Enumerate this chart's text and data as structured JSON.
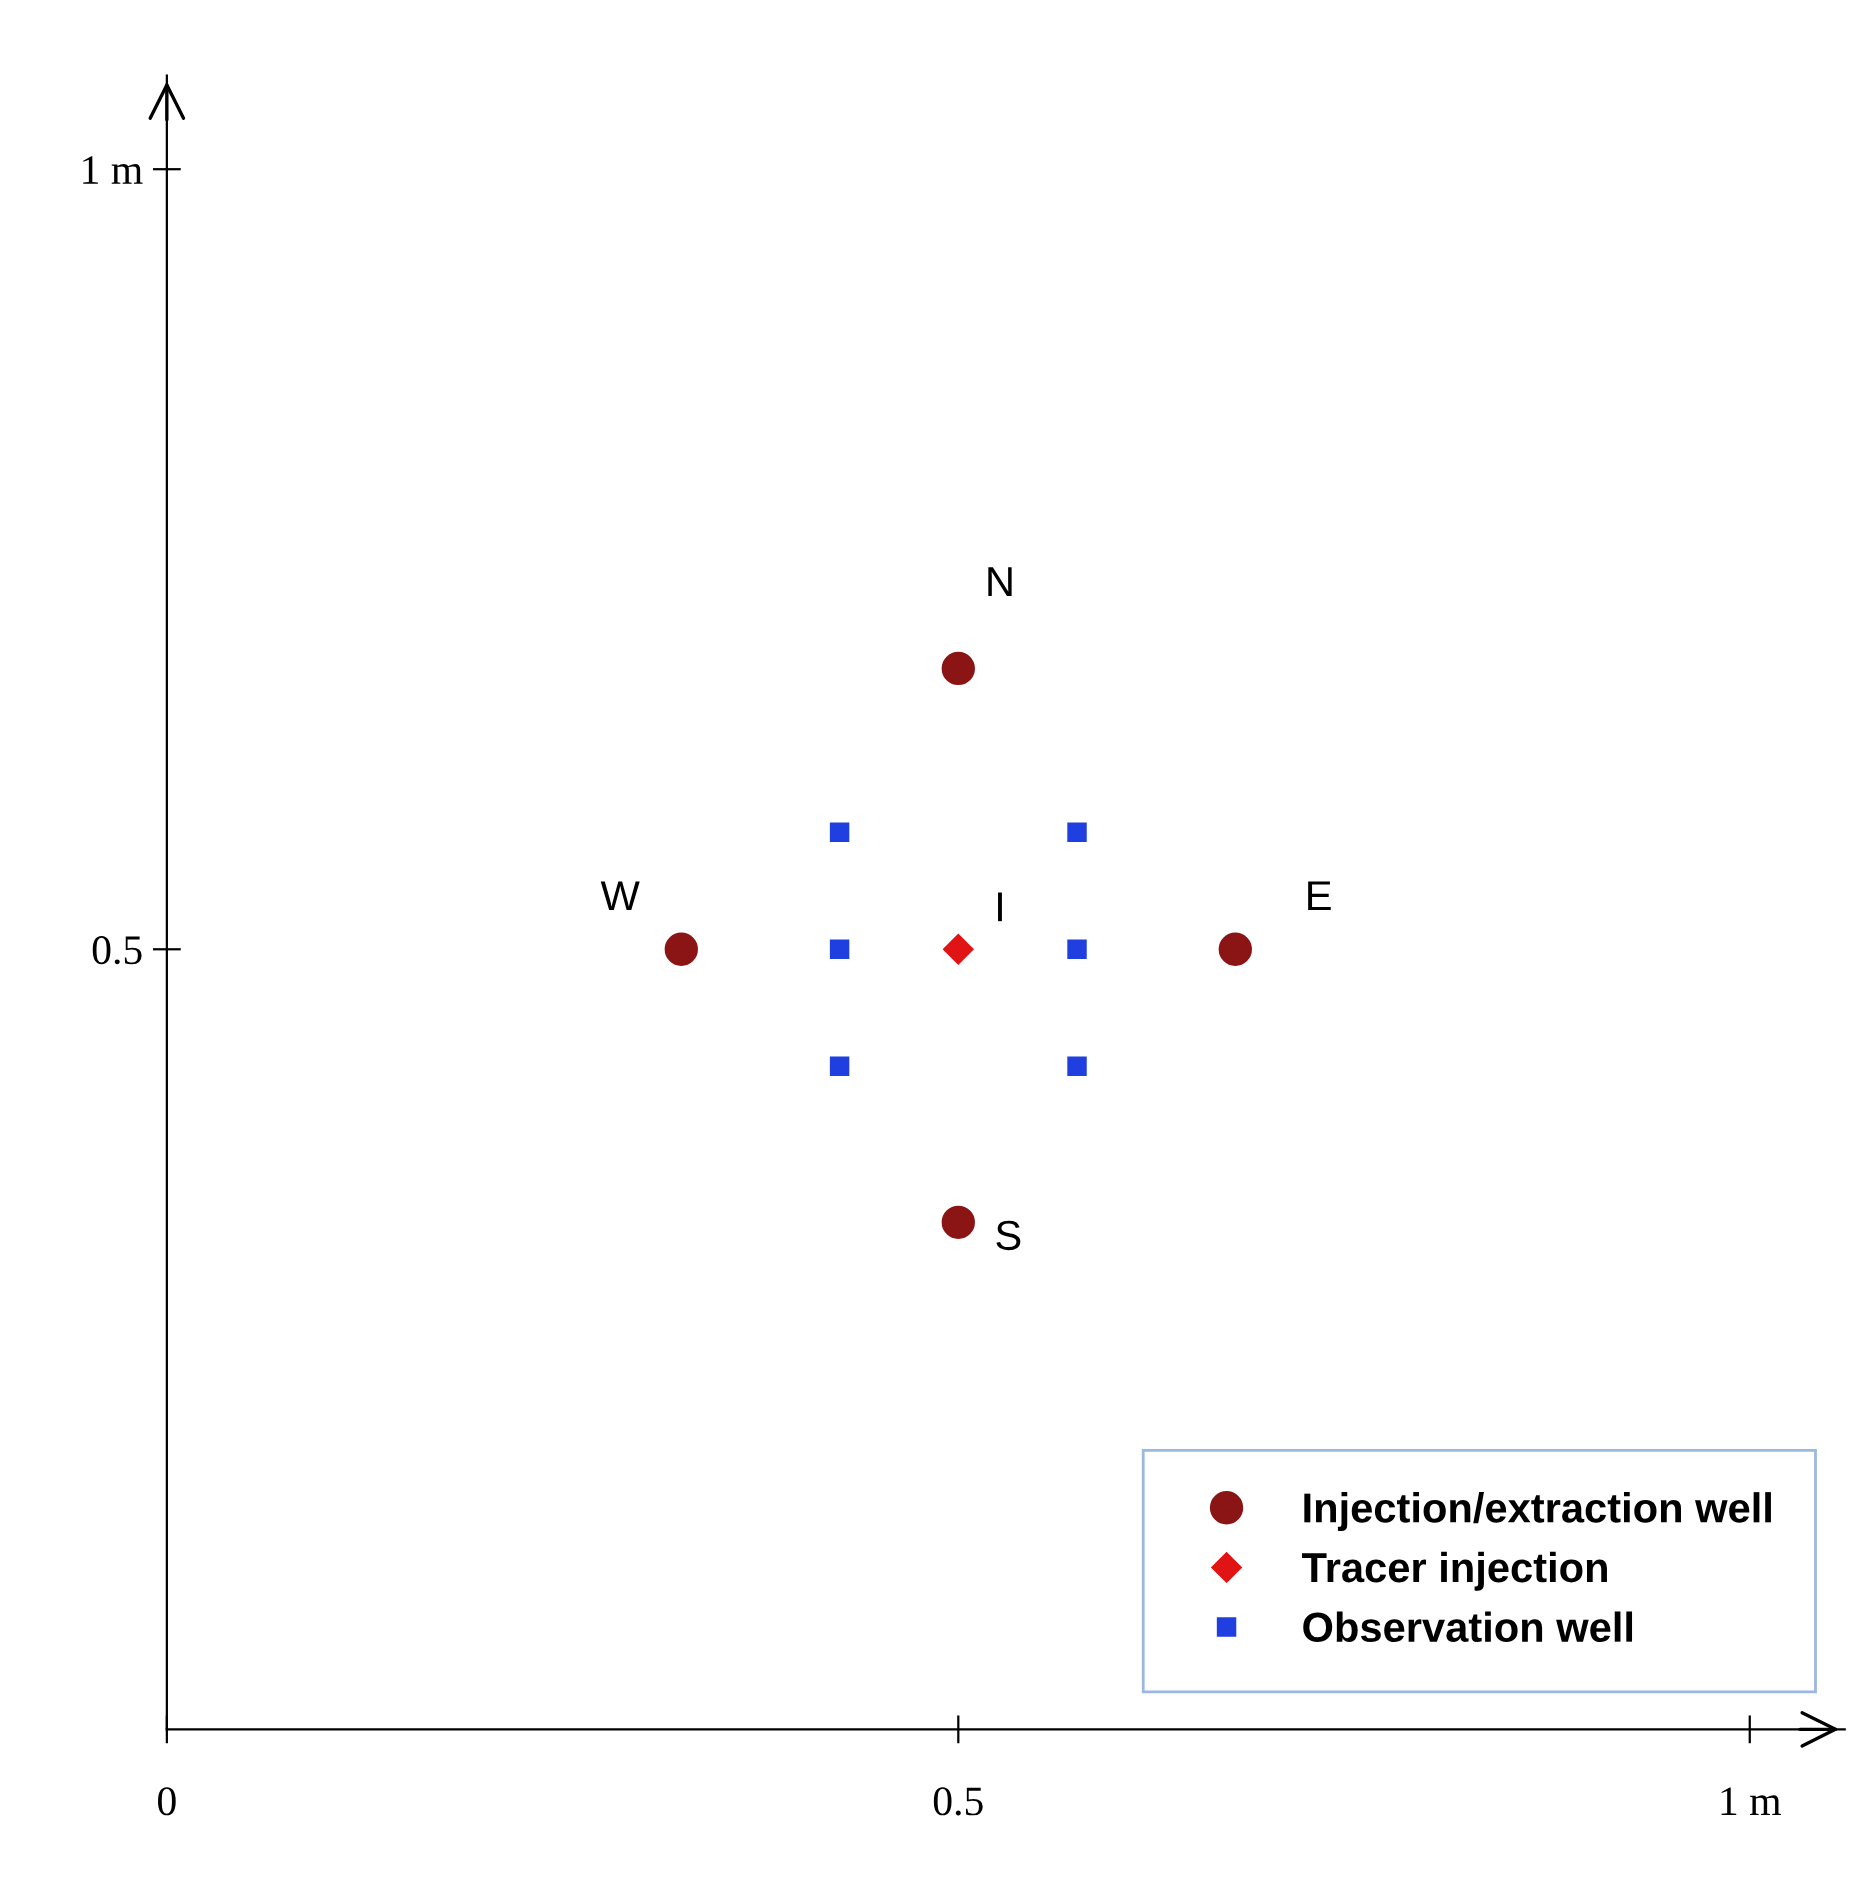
{
  "chart_data": {
    "type": "scatter",
    "xlim": [
      0,
      1.06
    ],
    "ylim": [
      0,
      1.06
    ],
    "xticks": [
      0,
      0.5,
      {
        "value": 1,
        "label": "1 m"
      }
    ],
    "yticks": [
      0.5,
      {
        "value": 1,
        "label": "1 m"
      }
    ],
    "grid": false,
    "legend": "bottom right",
    "series": [
      {
        "name": "Injection/extraction well",
        "color": "#8b1414",
        "marker": "circle",
        "x": [
          0.5,
          0.5,
          0.325,
          0.675
        ],
        "values": [
          0.68,
          0.325,
          0.5,
          0.5
        ]
      },
      {
        "name": "Tracer injection",
        "color": "#e01414",
        "marker": "diamond",
        "x": [
          0.5
        ],
        "values": [
          0.5
        ]
      },
      {
        "name": "Observation well",
        "color": "#1f3fe0",
        "marker": "square",
        "x": [
          0.425,
          0.575,
          0.425,
          0.575,
          0.425,
          0.575
        ],
        "values": [
          0.575,
          0.575,
          0.5,
          0.5,
          0.425,
          0.425
        ]
      }
    ],
    "annotations": [
      {
        "text": "N",
        "x": 0.5,
        "y": 0.68
      },
      {
        "text": "S",
        "x": 0.5,
        "y": 0.325
      },
      {
        "text": "W",
        "x": 0.325,
        "y": 0.5
      },
      {
        "text": "E",
        "x": 0.675,
        "y": 0.5
      },
      {
        "text": "I",
        "x": 0.5,
        "y": 0.5
      }
    ]
  }
}
